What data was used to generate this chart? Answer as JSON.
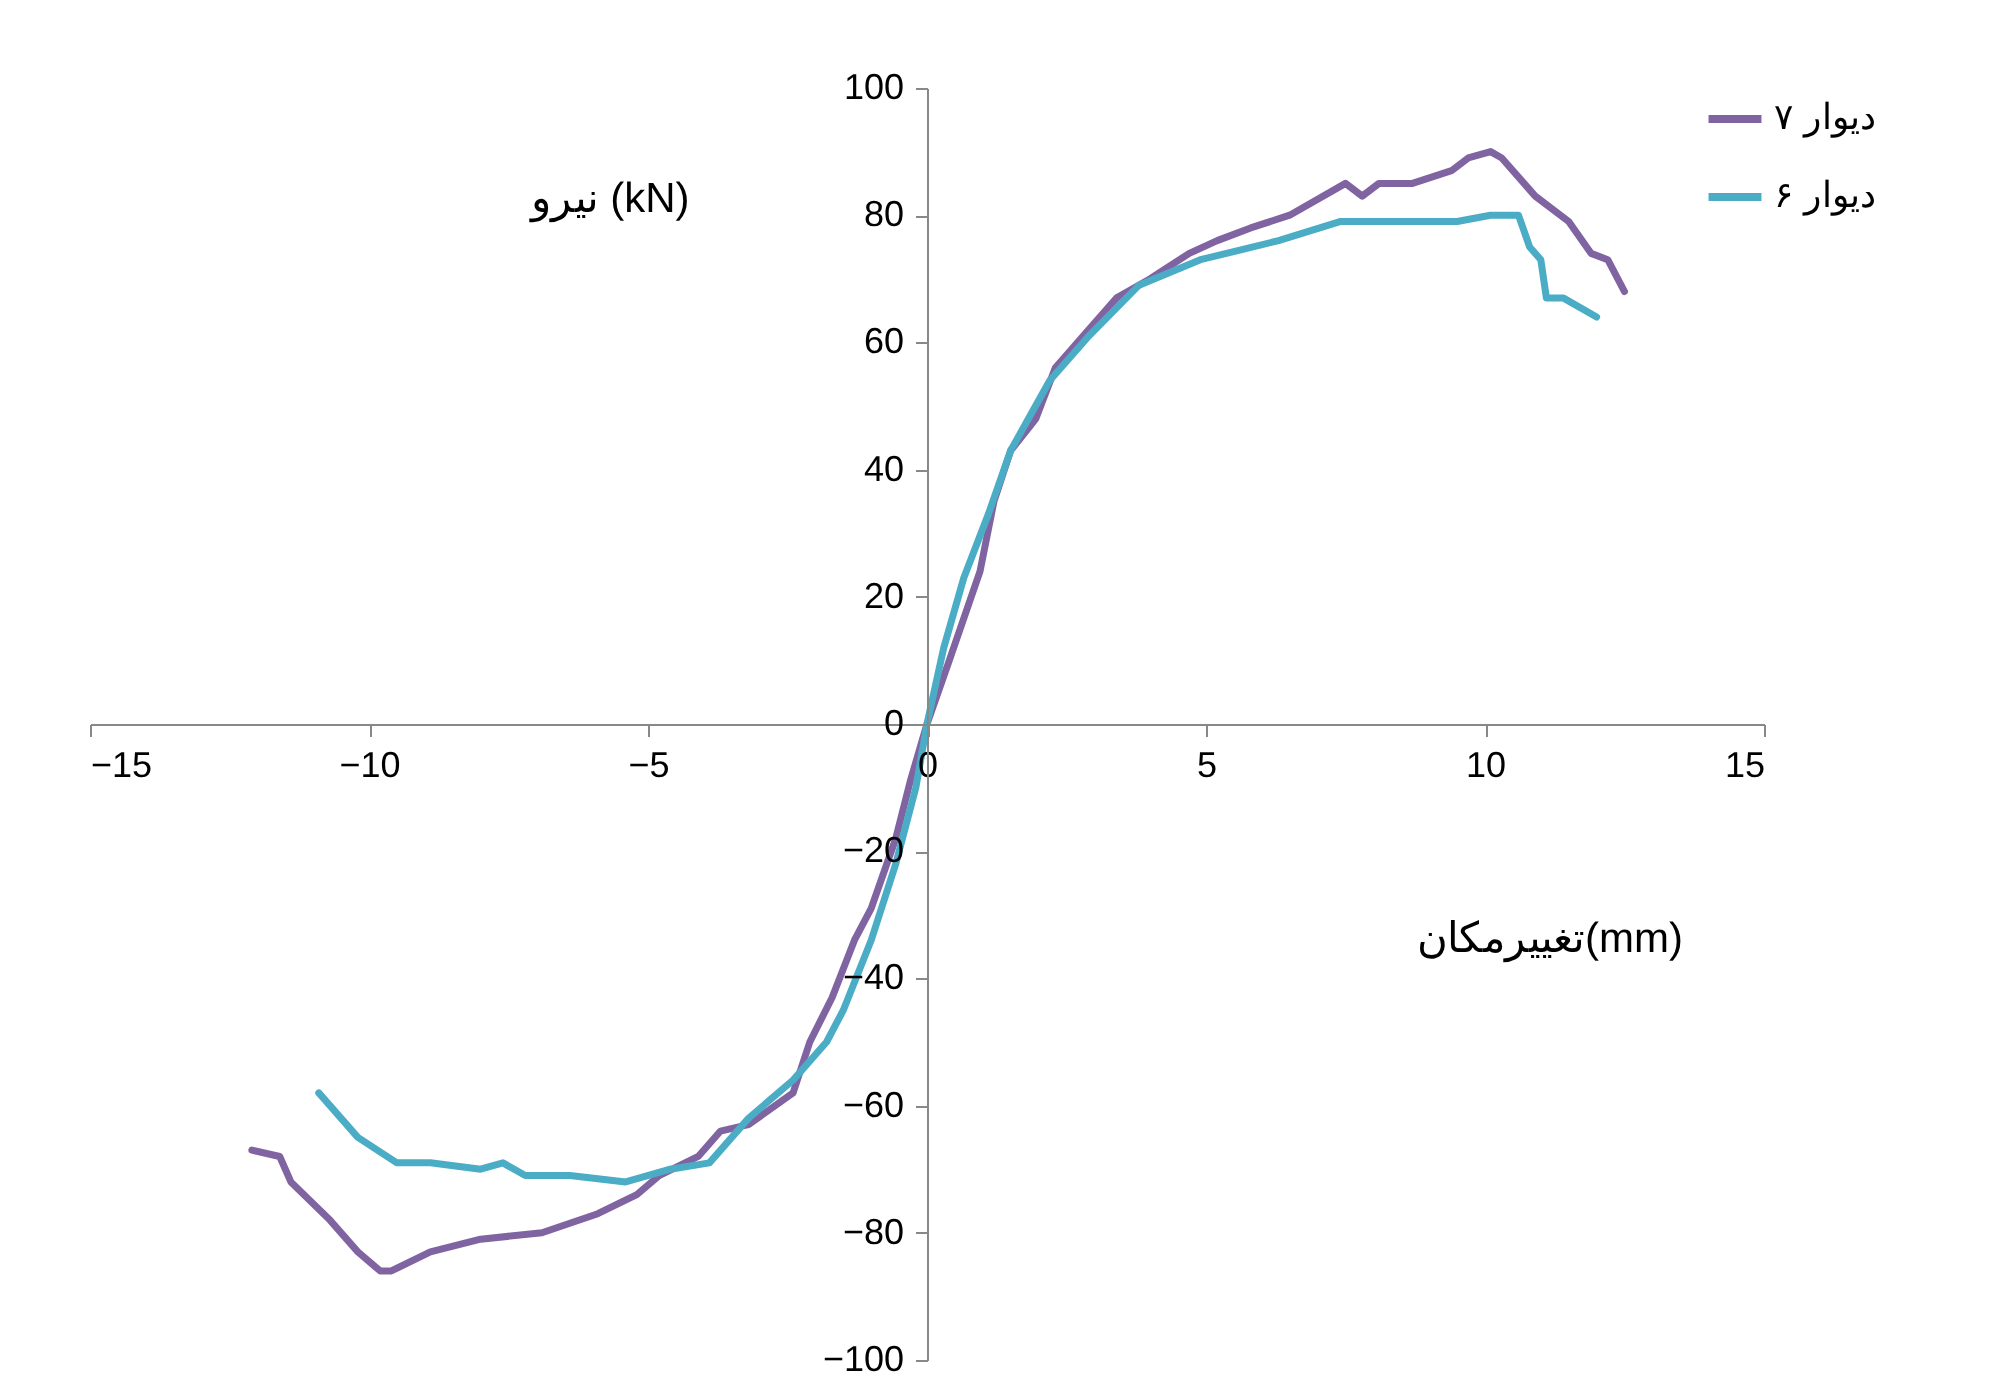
{
  "chart_data": {
    "type": "line",
    "xlabel": "تغییرمکان(mm)",
    "ylabel": "نیرو (kN)",
    "xlim": [
      -15,
      15
    ],
    "xticks": [
      -15,
      -10,
      -5,
      0,
      5,
      10,
      15
    ],
    "ylim": [
      -100,
      100
    ],
    "yticks": [
      -100,
      -80,
      -60,
      -40,
      -20,
      0,
      20,
      40,
      60,
      80,
      100
    ],
    "grid": false,
    "legend": "top right",
    "marker": "none",
    "line_style": "solid",
    "series": [
      {
        "name": "دیوار ۷",
        "color": "#8064a2",
        "x": [
          -12.1,
          -11.6,
          -11.4,
          -10.7,
          -10.2,
          -9.8,
          -9.6,
          -8.9,
          -8.0,
          -6.9,
          -5.9,
          -5.2,
          -4.8,
          -4.1,
          -3.7,
          -3.2,
          -2.4,
          -2.1,
          -1.7,
          -1.3,
          -1.0,
          -0.56,
          -0.3,
          0,
          0.4,
          0.95,
          1.2,
          1.5,
          1.95,
          2.3,
          2.9,
          3.4,
          4.0,
          4.7,
          5.2,
          5.8,
          6.5,
          7.5,
          7.8,
          8.1,
          8.7,
          9.4,
          9.7,
          10.1,
          10.3,
          10.7,
          10.9,
          11.5,
          11.9,
          12.2,
          12.5
        ],
        "values": [
          -67,
          -68,
          -72,
          -78,
          -83,
          -86,
          -86,
          -83,
          -81,
          -80,
          -77,
          -74,
          -71,
          -68,
          -64,
          -63,
          -58,
          -50,
          -43,
          -34,
          -29,
          -18,
          -9,
          0,
          10,
          24,
          35,
          43,
          48,
          56,
          62,
          67,
          70,
          74,
          76,
          78,
          80,
          85,
          83,
          85,
          85,
          87,
          89,
          90,
          89,
          85,
          83,
          79,
          74,
          73,
          68
        ]
      },
      {
        "name": "دیوار ۶",
        "color": "#4bacc6",
        "x": [
          -10.9,
          -10.2,
          -9.5,
          -8.9,
          -8.0,
          -7.6,
          -7.2,
          -6.4,
          -5.4,
          -4.6,
          -3.9,
          -3.2,
          -2.4,
          -1.8,
          -1.5,
          -1.0,
          -0.56,
          -0.2,
          0,
          0.3,
          0.66,
          1.1,
          1.5,
          2.2,
          2.9,
          3.8,
          4.9,
          6.3,
          7.4,
          8.5,
          9.5,
          10.1,
          10.6,
          10.8,
          11.0,
          11.1,
          11.4,
          12.0
        ],
        "values": [
          -58,
          -65,
          -69,
          -69,
          -70,
          -69,
          -71,
          -71,
          -72,
          -70,
          -69,
          -62,
          -56,
          -50,
          -45,
          -34,
          -22,
          -10,
          0,
          12,
          23,
          33,
          43,
          54,
          61,
          69,
          73,
          76,
          79,
          79,
          79,
          80,
          80,
          75,
          73,
          67,
          67,
          64
        ]
      }
    ]
  }
}
